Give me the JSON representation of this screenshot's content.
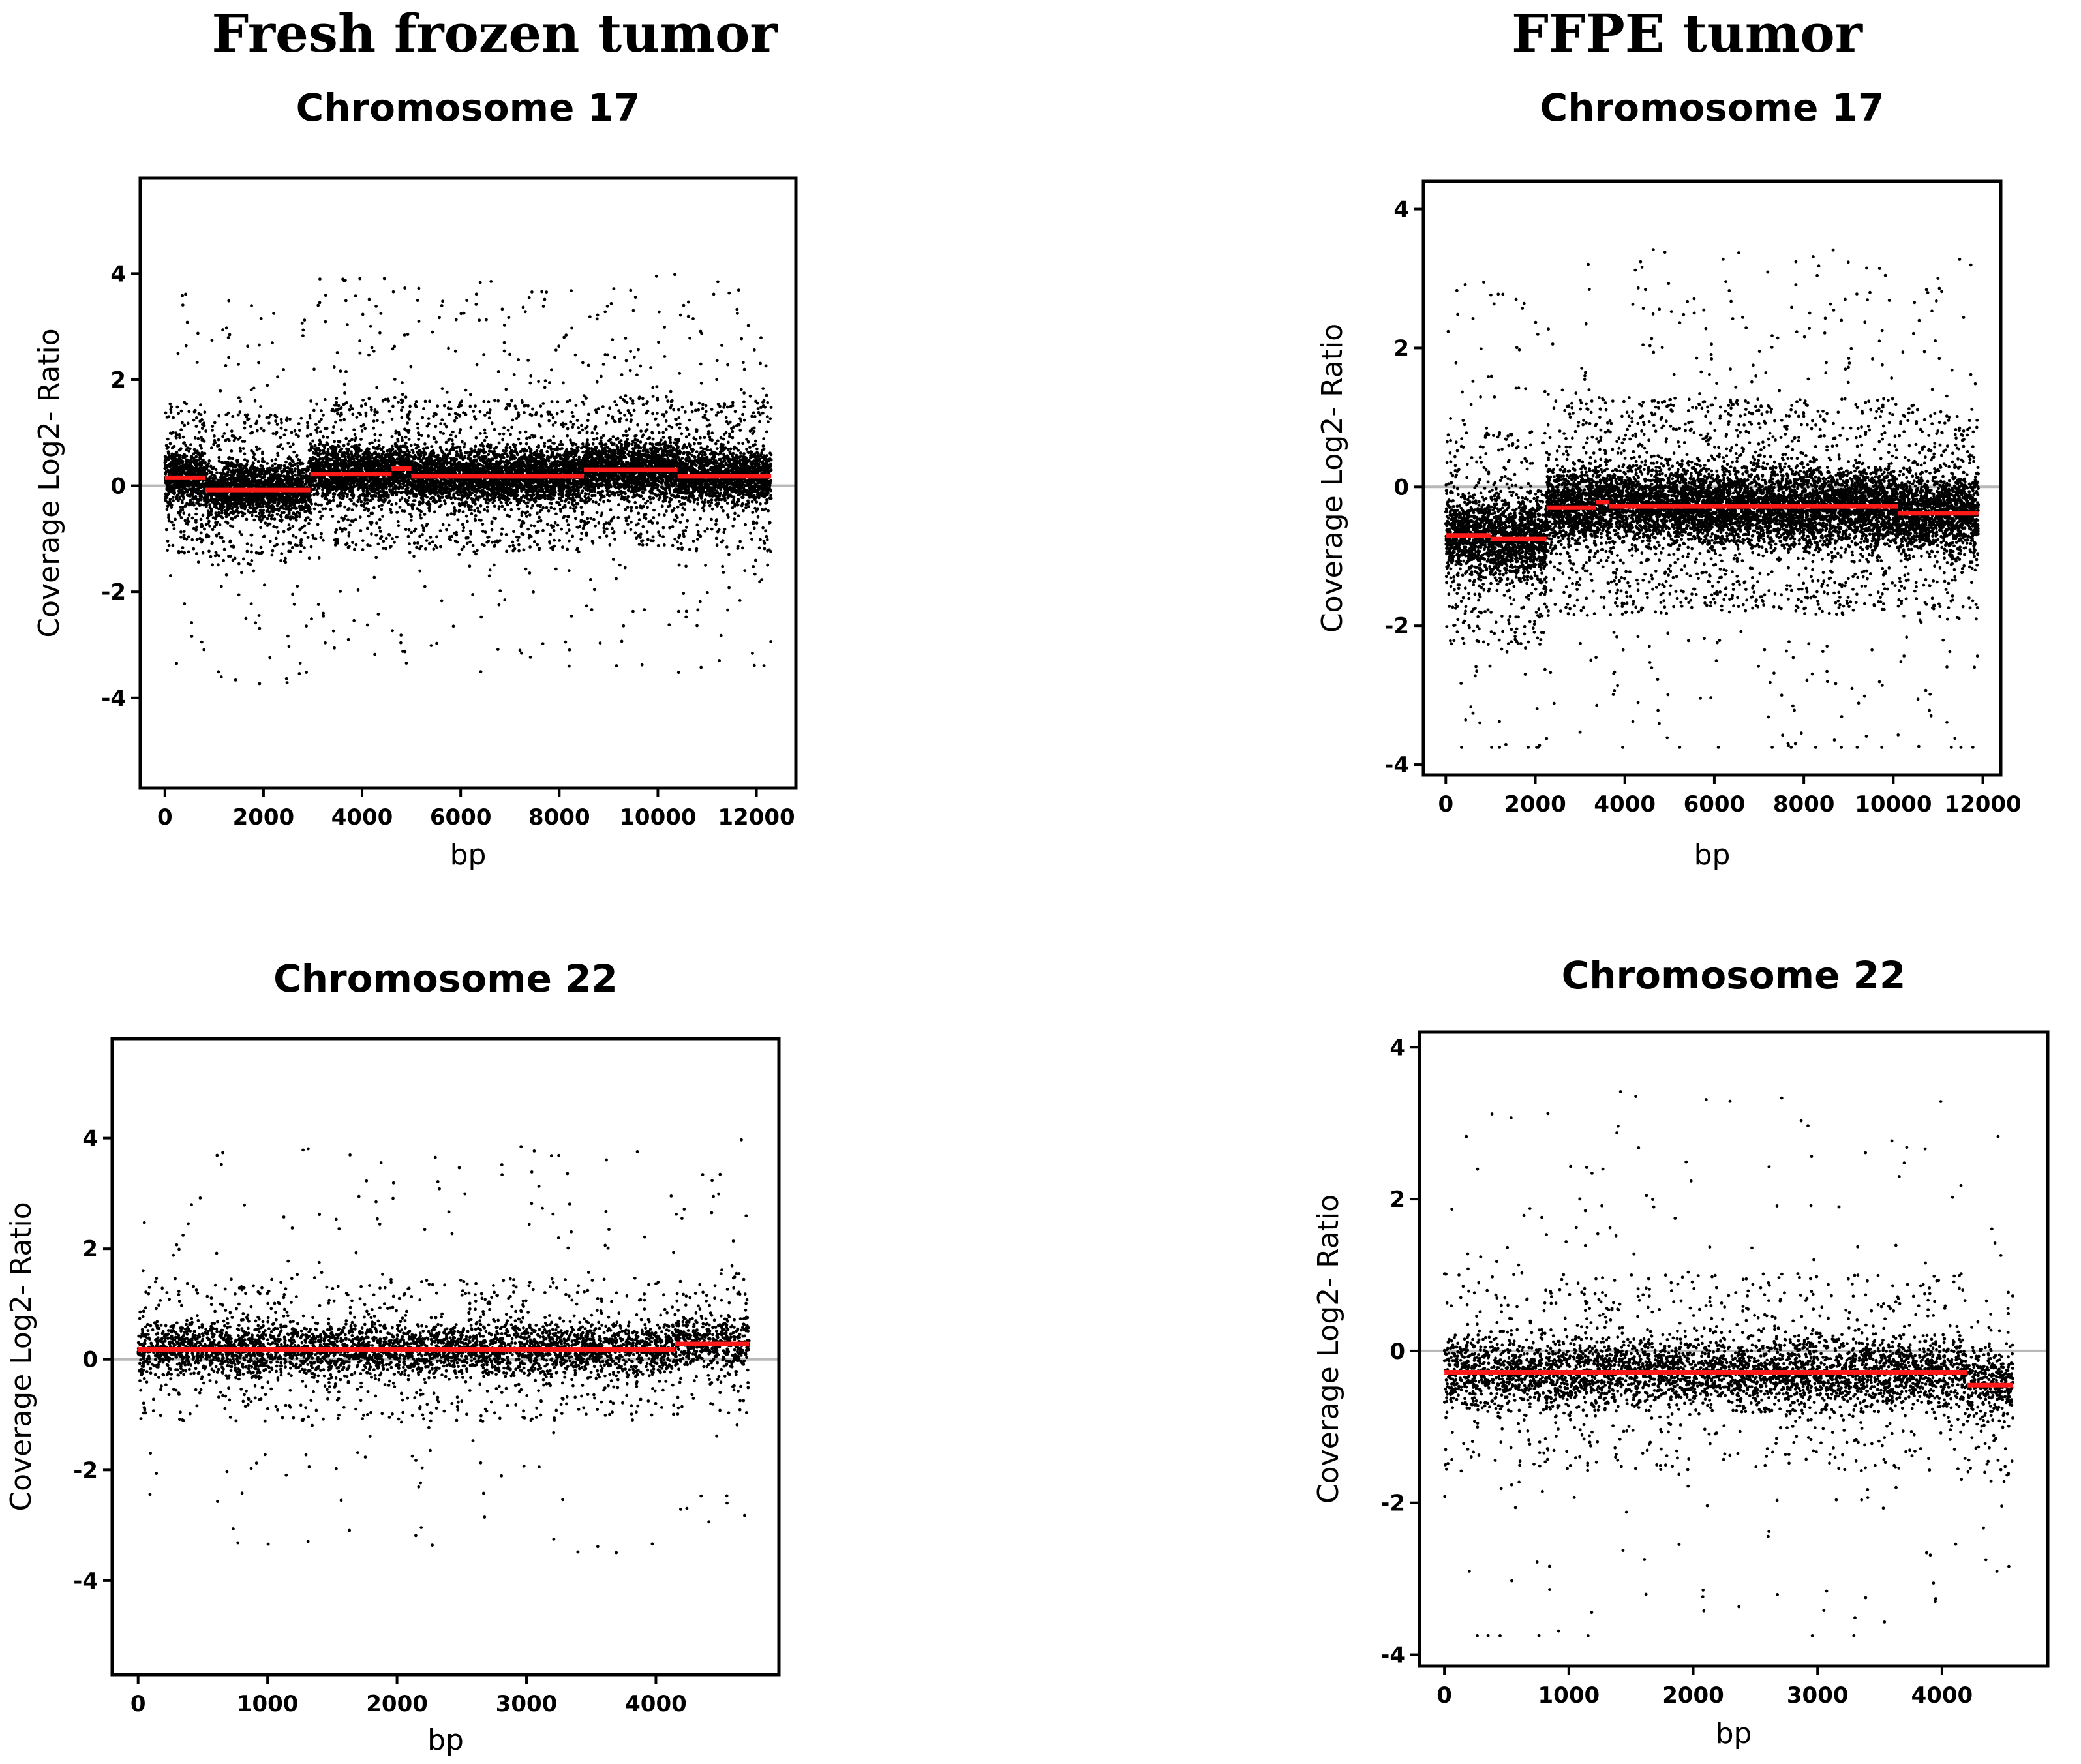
{
  "columns": {
    "left": "Fresh frozen tumor",
    "right": "FFPE tumor"
  },
  "chart_data": [
    {
      "id": "ff17",
      "type": "scatter",
      "title": "Chromosome 17",
      "xlabel": "bp",
      "ylabel": "Coverage Log2- Ratio",
      "xlim": [
        -500,
        12800
      ],
      "ylim": [
        -5.7,
        5.8
      ],
      "xticks": [
        0,
        2000,
        4000,
        6000,
        8000,
        10000,
        12000
      ],
      "yticks": [
        -4,
        -2,
        0,
        2,
        4
      ],
      "xticks_labels": [
        "0",
        "2000",
        "4000",
        "6000",
        "8000",
        "10000",
        "12000"
      ],
      "yticks_labels": [
        "-4",
        "-2",
        "0",
        "2",
        "4"
      ],
      "points": {
        "n": 12000,
        "x_range": [
          0,
          12300
        ],
        "spread": 0.55,
        "seed": 17
      },
      "segments": [
        {
          "x0": 0,
          "x1": 820,
          "y": 0.15
        },
        {
          "x0": 820,
          "x1": 2950,
          "y": -0.08
        },
        {
          "x0": 2950,
          "x1": 4600,
          "y": 0.22
        },
        {
          "x0": 4600,
          "x1": 5000,
          "y": 0.32
        },
        {
          "x0": 5000,
          "x1": 8500,
          "y": 0.18
        },
        {
          "x0": 8500,
          "x1": 10400,
          "y": 0.3
        },
        {
          "x0": 10400,
          "x1": 12300,
          "y": 0.18
        }
      ]
    },
    {
      "id": "ffpe17",
      "type": "scatter",
      "title": "Chromosome 17",
      "xlabel": "bp",
      "ylabel": "Coverage Log2- Ratio",
      "xlim": [
        -500,
        12400
      ],
      "ylim": [
        -4.15,
        4.4
      ],
      "xticks": [
        0,
        2000,
        4000,
        6000,
        8000,
        10000,
        12000
      ],
      "yticks": [
        -4,
        -2,
        0,
        2,
        4
      ],
      "xticks_labels": [
        "0",
        "2000",
        "4000",
        "6000",
        "8000",
        "10000",
        "12000"
      ],
      "yticks_labels": [
        "-4",
        "-2",
        "0",
        "2",
        "4"
      ],
      "points": {
        "n": 11000,
        "x_range": [
          0,
          11900
        ],
        "spread": 0.6,
        "seed": 171
      },
      "segments": [
        {
          "x0": 0,
          "x1": 1000,
          "y": -0.7
        },
        {
          "x0": 1000,
          "x1": 2250,
          "y": -0.75
        },
        {
          "x0": 2250,
          "x1": 3350,
          "y": -0.3
        },
        {
          "x0": 3350,
          "x1": 3650,
          "y": -0.22
        },
        {
          "x0": 3650,
          "x1": 10100,
          "y": -0.28
        },
        {
          "x0": 10100,
          "x1": 11900,
          "y": -0.38
        }
      ]
    },
    {
      "id": "ff22",
      "type": "scatter",
      "title": "Chromosome 22",
      "xlabel": "bp",
      "ylabel": "Coverage Log2- Ratio",
      "xlim": [
        -200,
        4950
      ],
      "ylim": [
        -5.7,
        5.8
      ],
      "xticks": [
        0,
        1000,
        2000,
        3000,
        4000
      ],
      "yticks": [
        -4,
        -2,
        0,
        2,
        4
      ],
      "xticks_labels": [
        "0",
        "1000",
        "2000",
        "3000",
        "4000"
      ],
      "yticks_labels": [
        "-4",
        "-2",
        "0",
        "2",
        "4"
      ],
      "points": {
        "n": 4700,
        "x_range": [
          0,
          4720
        ],
        "spread": 0.5,
        "seed": 22
      },
      "segments": [
        {
          "x0": 0,
          "x1": 4150,
          "y": 0.18
        },
        {
          "x0": 4150,
          "x1": 4720,
          "y": 0.28
        }
      ]
    },
    {
      "id": "ffpe22",
      "type": "scatter",
      "title": "Chromosome 22",
      "xlabel": "bp",
      "ylabel": "Coverage Log2- Ratio",
      "xlim": [
        -200,
        4850
      ],
      "ylim": [
        -4.15,
        4.2
      ],
      "xticks": [
        0,
        1000,
        2000,
        3000,
        4000
      ],
      "yticks": [
        -4,
        -2,
        0,
        2,
        4
      ],
      "xticks_labels": [
        "0",
        "1000",
        "2000",
        "3000",
        "4000"
      ],
      "yticks_labels": [
        "-4",
        "-2",
        "0",
        "2",
        "4"
      ],
      "points": {
        "n": 4600,
        "x_range": [
          0,
          4570
        ],
        "spread": 0.5,
        "seed": 221
      },
      "segments": [
        {
          "x0": 0,
          "x1": 4200,
          "y": -0.28
        },
        {
          "x0": 4200,
          "x1": 4570,
          "y": -0.45
        }
      ]
    }
  ]
}
